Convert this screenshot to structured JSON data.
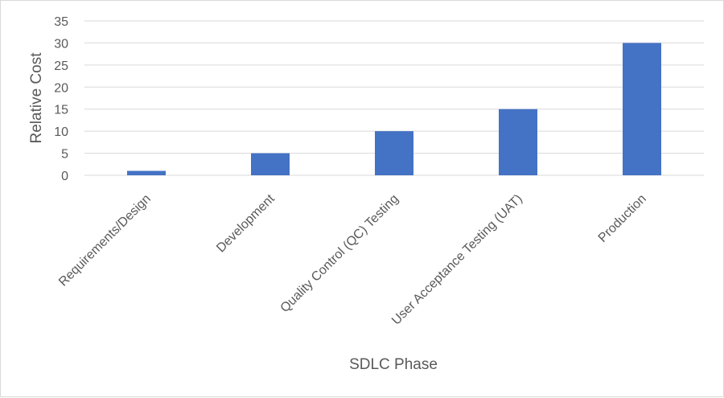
{
  "chart_data": {
    "type": "bar",
    "title": "",
    "xlabel": "SDLC Phase",
    "ylabel": "Relative Cost",
    "categories": [
      "Requirements/Design",
      "Development",
      "Quality Control (QC) Testing",
      "User Acceptance Testing (UAT)",
      "Production"
    ],
    "values": [
      1,
      5,
      10,
      15,
      30
    ],
    "ylim": [
      0,
      35
    ],
    "yticks": [
      "0",
      "5",
      "10",
      "15",
      "20",
      "25",
      "30",
      "35"
    ],
    "grid": true,
    "legend": "none",
    "colors": {
      "bar": "#4472C4",
      "grid": "#d9d9d9",
      "text": "#595959",
      "border": "#d9d9d9"
    }
  }
}
